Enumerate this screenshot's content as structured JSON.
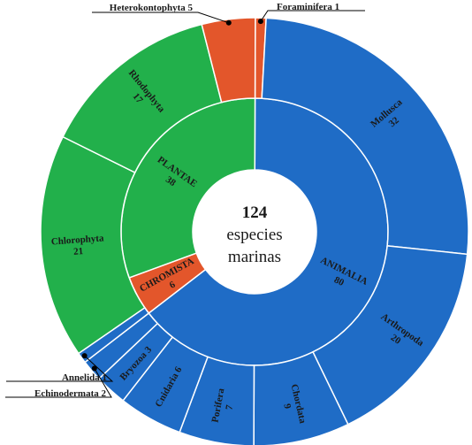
{
  "chart_data": {
    "type": "sunburst",
    "center": {
      "value": "124",
      "lines": [
        "especies",
        "marinas"
      ]
    },
    "total": 124,
    "colors": {
      "ANIMALIA": "#1f6cc6",
      "PLANTAE": "#22b04b",
      "CHROMISTA": "#e3562b"
    },
    "inner": [
      {
        "name": "ANIMALIA",
        "value": 80
      },
      {
        "name": "CHROMISTA",
        "value": 6
      },
      {
        "name": "PLANTAE",
        "value": 38
      }
    ],
    "outer": [
      {
        "name": "Foraminifera",
        "value": 1,
        "parent": "CHROMISTA"
      },
      {
        "name": "Mollusca",
        "value": 32,
        "parent": "ANIMALIA"
      },
      {
        "name": "Arthropoda",
        "value": 20,
        "parent": "ANIMALIA"
      },
      {
        "name": "Chordata",
        "value": 9,
        "parent": "ANIMALIA"
      },
      {
        "name": "Porifera",
        "value": 7,
        "parent": "ANIMALIA"
      },
      {
        "name": "Cnidaria",
        "value": 6,
        "parent": "ANIMALIA"
      },
      {
        "name": "Bryozoa",
        "value": 3,
        "parent": "ANIMALIA"
      },
      {
        "name": "Echinodermata",
        "value": 2,
        "parent": "ANIMALIA"
      },
      {
        "name": "Annelida",
        "value": 1,
        "parent": "ANIMALIA"
      },
      {
        "name": "Chlorophyta",
        "value": 21,
        "parent": "PLANTAE"
      },
      {
        "name": "Rhodophyta",
        "value": 17,
        "parent": "PLANTAE"
      },
      {
        "name": "Heterokontophyta",
        "value": 5,
        "parent": "CHROMISTA"
      }
    ]
  }
}
